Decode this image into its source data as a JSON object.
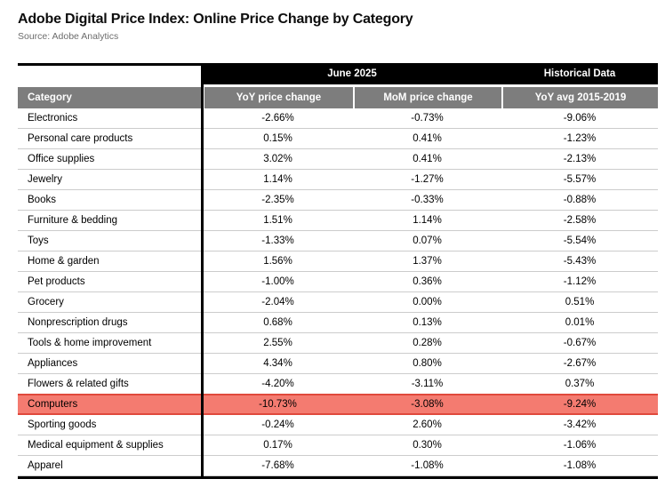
{
  "colors": {
    "highlight_fill": "#f47b70",
    "highlight_border": "#e0493c",
    "column_header_bg": "#7d7d7d",
    "group_header_bg": "#000000",
    "row_divider": "#cccccc",
    "source_text": "#6c6c6c"
  },
  "chart_data": {
    "type": "table",
    "title": "Adobe Digital Price Index: Online Price Change by Category",
    "source": "Source: Adobe Analytics",
    "column_groups": [
      {
        "label": "June 2025",
        "columns": [
          "YoY price change",
          "MoM price change"
        ]
      },
      {
        "label": "Historical Data",
        "columns": [
          "YoY avg 2015-2019"
        ]
      }
    ],
    "columns": [
      "Category",
      "YoY price change",
      "MoM price change",
      "YoY avg 2015-2019"
    ],
    "rows": [
      [
        "Electronics",
        "-2.66%",
        "-0.73%",
        "-9.06%"
      ],
      [
        "Personal care products",
        "0.15%",
        "0.41%",
        "-1.23%"
      ],
      [
        "Office supplies",
        "3.02%",
        "0.41%",
        "-2.13%"
      ],
      [
        "Jewelry",
        "1.14%",
        "-1.27%",
        "-5.57%"
      ],
      [
        "Books",
        "-2.35%",
        "-0.33%",
        "-0.88%"
      ],
      [
        "Furniture & bedding",
        "1.51%",
        "1.14%",
        "-2.58%"
      ],
      [
        "Toys",
        "-1.33%",
        "0.07%",
        "-5.54%"
      ],
      [
        "Home & garden",
        "1.56%",
        "1.37%",
        "-5.43%"
      ],
      [
        "Pet products",
        "-1.00%",
        "0.36%",
        "-1.12%"
      ],
      [
        "Grocery",
        "-2.04%",
        "0.00%",
        "0.51%"
      ],
      [
        "Nonprescription drugs",
        "0.68%",
        "0.13%",
        "0.01%"
      ],
      [
        "Tools & home improvement",
        "2.55%",
        "0.28%",
        "-0.67%"
      ],
      [
        "Appliances",
        "4.34%",
        "0.80%",
        "-2.67%"
      ],
      [
        "Flowers & related gifts",
        "-4.20%",
        "-3.11%",
        "0.37%"
      ],
      [
        "Computers",
        "-10.73%",
        "-3.08%",
        "-9.24%"
      ],
      [
        "Sporting goods",
        "-0.24%",
        "2.60%",
        "-3.42%"
      ],
      [
        "Medical equipment & supplies",
        "0.17%",
        "0.30%",
        "-1.06%"
      ],
      [
        "Apparel",
        "-7.68%",
        "-1.08%",
        "-1.08%"
      ]
    ],
    "highlight_row_index": 14,
    "highlight_row_label": "Computers"
  }
}
